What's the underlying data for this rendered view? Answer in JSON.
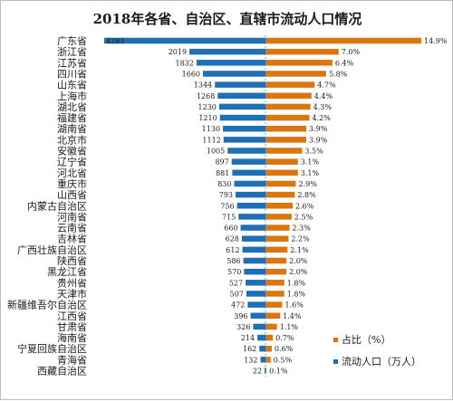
{
  "chart_data": {
    "type": "bar",
    "title": "2018年各省、自治区、直辖市流动人口情况",
    "categories": [
      "广东省",
      "浙江省",
      "江苏省",
      "四川省",
      "山东省",
      "上海市",
      "湖北省",
      "福建省",
      "湖南省",
      "北京市",
      "安徽省",
      "辽宁省",
      "河北省",
      "重庆市",
      "山西省",
      "内蒙古自治区",
      "河南省",
      "云南省",
      "吉林省",
      "广西壮族自治区",
      "陕西省",
      "黑龙江省",
      "贵州省",
      "天津市",
      "新疆维吾尔自治区",
      "江西省",
      "甘肃省",
      "海南省",
      "宁夏回族自治区",
      "青海省",
      "西藏自治区"
    ],
    "series": [
      {
        "name": "流动人口（万人）",
        "color": "#1f6fb5",
        "values": [
          4283,
          2019,
          1832,
          1660,
          1344,
          1268,
          1230,
          1210,
          1130,
          1112,
          1005,
          897,
          881,
          830,
          793,
          756,
          715,
          660,
          628,
          612,
          586,
          570,
          527,
          507,
          472,
          396,
          326,
          214,
          162,
          132,
          22
        ],
        "labels": [
          "4283",
          "2019",
          "1832",
          "1660",
          "1344",
          "1268",
          "1230",
          "1210",
          "1130",
          "1112",
          "1005",
          "897",
          "881",
          "830",
          "793",
          "756",
          "715",
          "660",
          "628",
          "612",
          "586",
          "570",
          "527",
          "507",
          "472",
          "396",
          "326",
          "214",
          "162",
          "132",
          "22"
        ]
      },
      {
        "name": "占比（%）",
        "color": "#d9760f",
        "values": [
          14.9,
          7.0,
          6.4,
          5.8,
          4.7,
          4.4,
          4.3,
          4.2,
          3.9,
          3.9,
          3.5,
          3.1,
          3.1,
          2.9,
          2.8,
          2.6,
          2.5,
          2.3,
          2.2,
          2.1,
          2.0,
          2.0,
          1.8,
          1.8,
          1.6,
          1.4,
          1.1,
          0.7,
          0.6,
          0.5,
          0.1
        ],
        "labels": [
          "14.9%",
          "7.0%",
          "6.4%",
          "5.8%",
          "4.7%",
          "4.4%",
          "4.3%",
          "4.2%",
          "3.9%",
          "3.9%",
          "3.5%",
          "3.1%",
          "3.1%",
          "2.9%",
          "2.8%",
          "2.6%",
          "2.5%",
          "2.3%",
          "2.2%",
          "2.1%",
          "2.0%",
          "2.0%",
          "1.8%",
          "1.8%",
          "1.6%",
          "1.4%",
          "1.1%",
          "0.7%",
          "0.6%",
          "0.5%",
          "0.1%"
        ]
      }
    ],
    "legend": {
      "position": "bottom-right",
      "entries": [
        "占比（%）",
        "流动人口（万人）"
      ]
    },
    "grid": false
  }
}
